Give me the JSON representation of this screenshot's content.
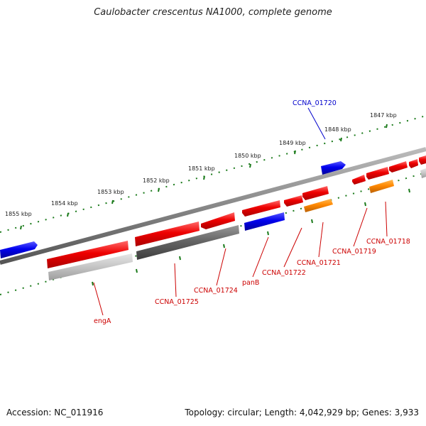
{
  "title": "Caulobacter crescentus NA1000, complete genome",
  "footer": {
    "accession": "Accession: NC_011916",
    "stats": "Topology: circular; Length: 4,042,929 bp; Genes: 3,933"
  },
  "scale": {
    "tick_labels": [
      "1855 kbp",
      "1854 kbp",
      "1853 kbp",
      "1852 kbp",
      "1851 kbp",
      "1850 kbp",
      "1849 kbp",
      "1848 kbp",
      "1847 kbp"
    ]
  },
  "colors": {
    "forward_cds": "#ee0000",
    "reverse_cds": "#ee0000",
    "rna": "#0000dd",
    "grey": "#666666",
    "orange": "#ff8800",
    "tick": "#1a7a1a",
    "backbone": "#888888"
  },
  "genes": [
    {
      "label": "CCNA_01720",
      "color": "#0000cc"
    },
    {
      "label": "CCNA_01718",
      "color": "#cc0000"
    },
    {
      "label": "CCNA_01719",
      "color": "#cc0000"
    },
    {
      "label": "CCNA_01721",
      "color": "#cc0000"
    },
    {
      "label": "CCNA_01722",
      "color": "#cc0000"
    },
    {
      "label": "panB",
      "color": "#cc0000"
    },
    {
      "label": "CCNA_01724",
      "color": "#cc0000"
    },
    {
      "label": "CCNA_01725",
      "color": "#cc0000"
    },
    {
      "label": "engA",
      "color": "#cc0000"
    }
  ]
}
